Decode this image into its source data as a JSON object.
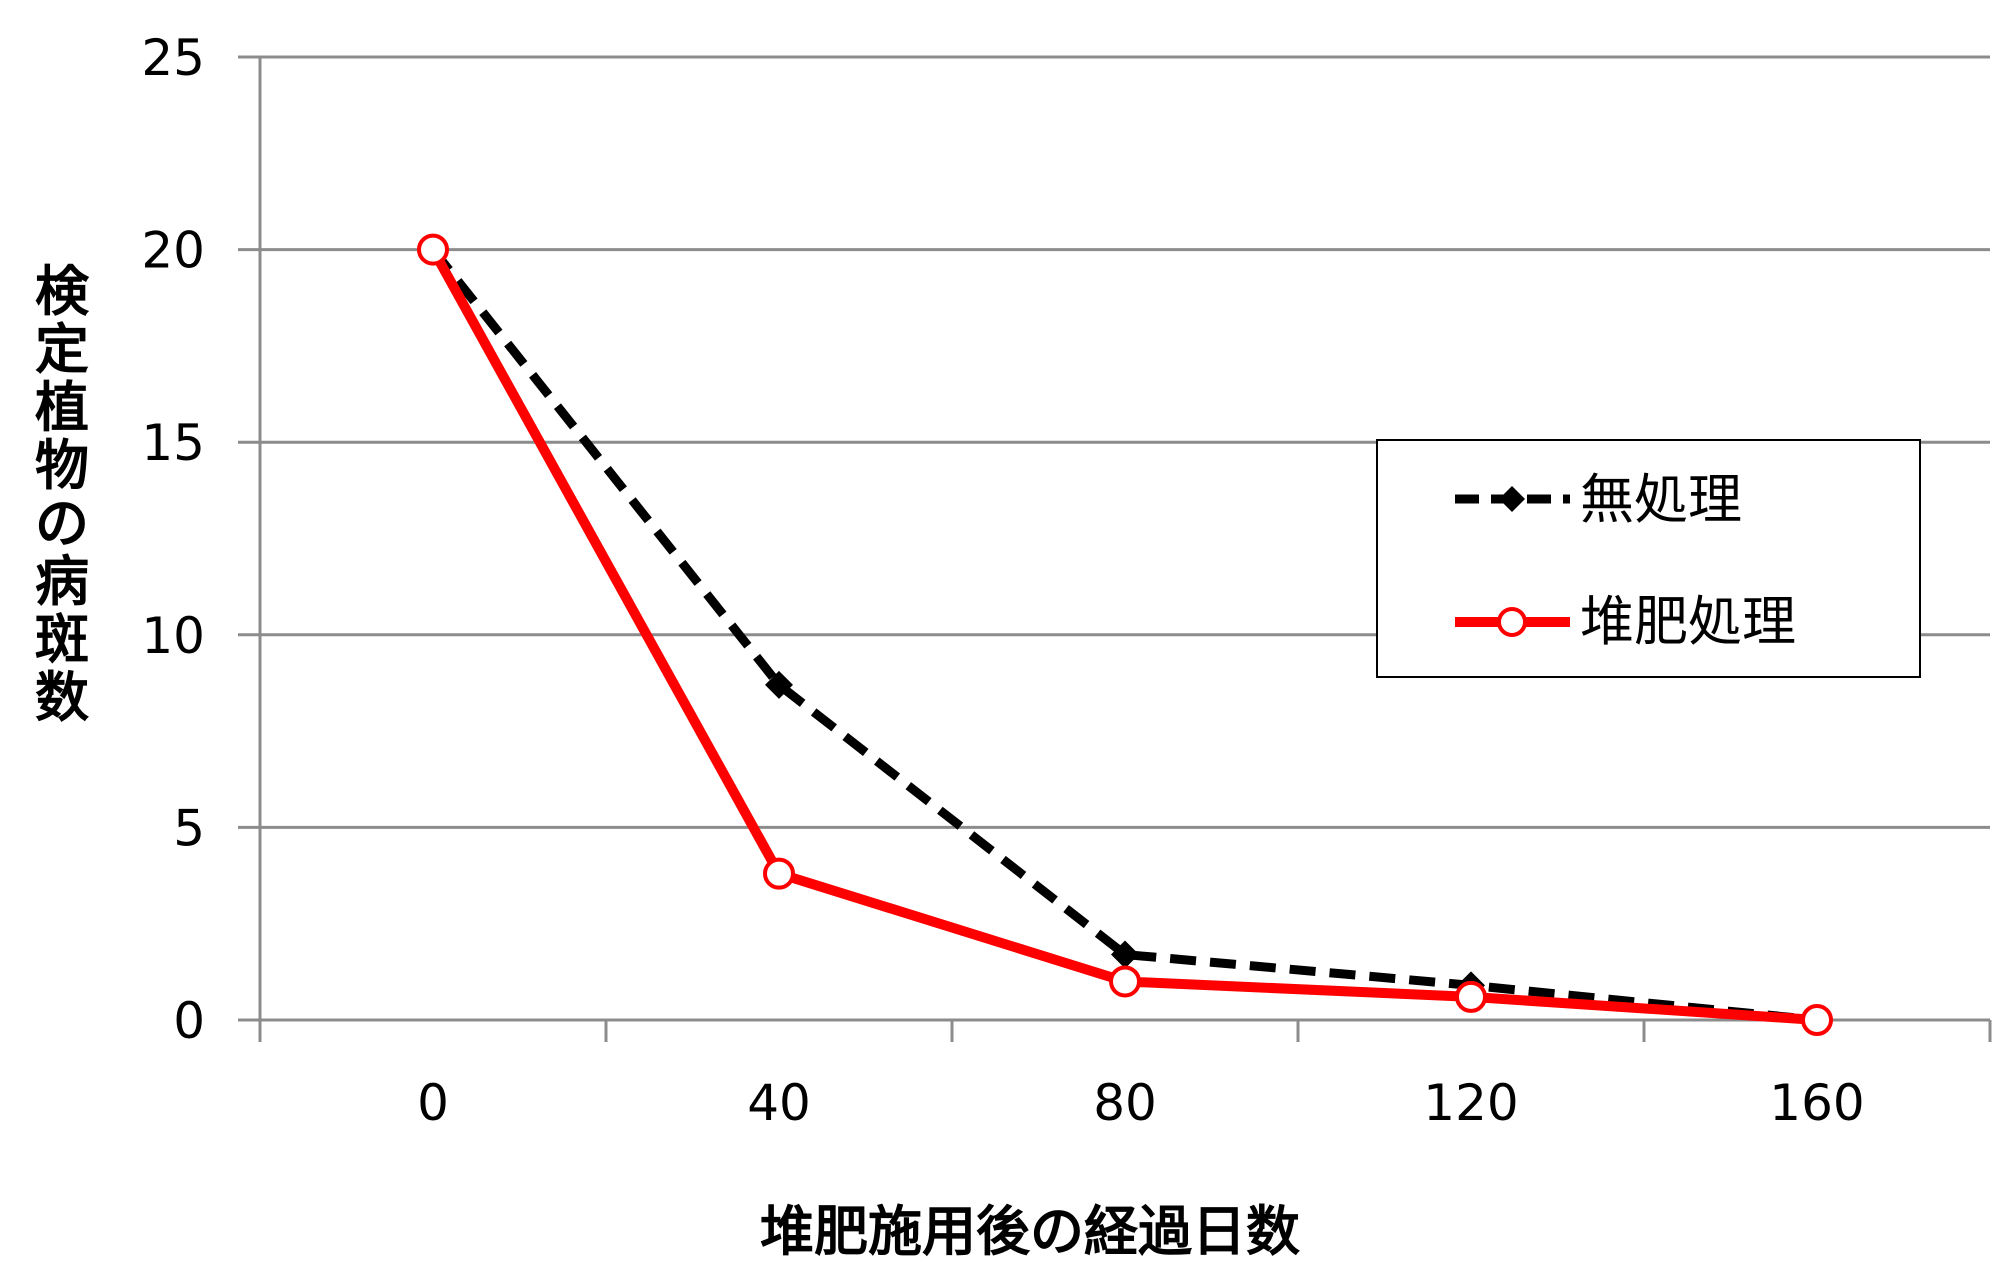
{
  "chart_data": {
    "type": "line",
    "categories": [
      "0",
      "40",
      "80",
      "120",
      "160"
    ],
    "x": [
      0,
      40,
      80,
      120,
      160
    ],
    "series": [
      {
        "name": "無処理",
        "values": [
          20,
          8.7,
          1.7,
          0.9,
          0
        ],
        "color": "#000000",
        "line_style": "dashed",
        "marker": "diamond"
      },
      {
        "name": "堆肥処理",
        "values": [
          20,
          3.8,
          1.0,
          0.6,
          0
        ],
        "color": "#ff0000",
        "line_style": "solid",
        "marker": "open-circle"
      }
    ],
    "xlabel": "堆肥施用後の経過日数",
    "ylabel": "検定植物の病斑数",
    "ylim": [
      0,
      25
    ],
    "yticks": [
      "0",
      "5",
      "10",
      "15",
      "20",
      "25"
    ],
    "grid": true,
    "legend_position": "right"
  }
}
